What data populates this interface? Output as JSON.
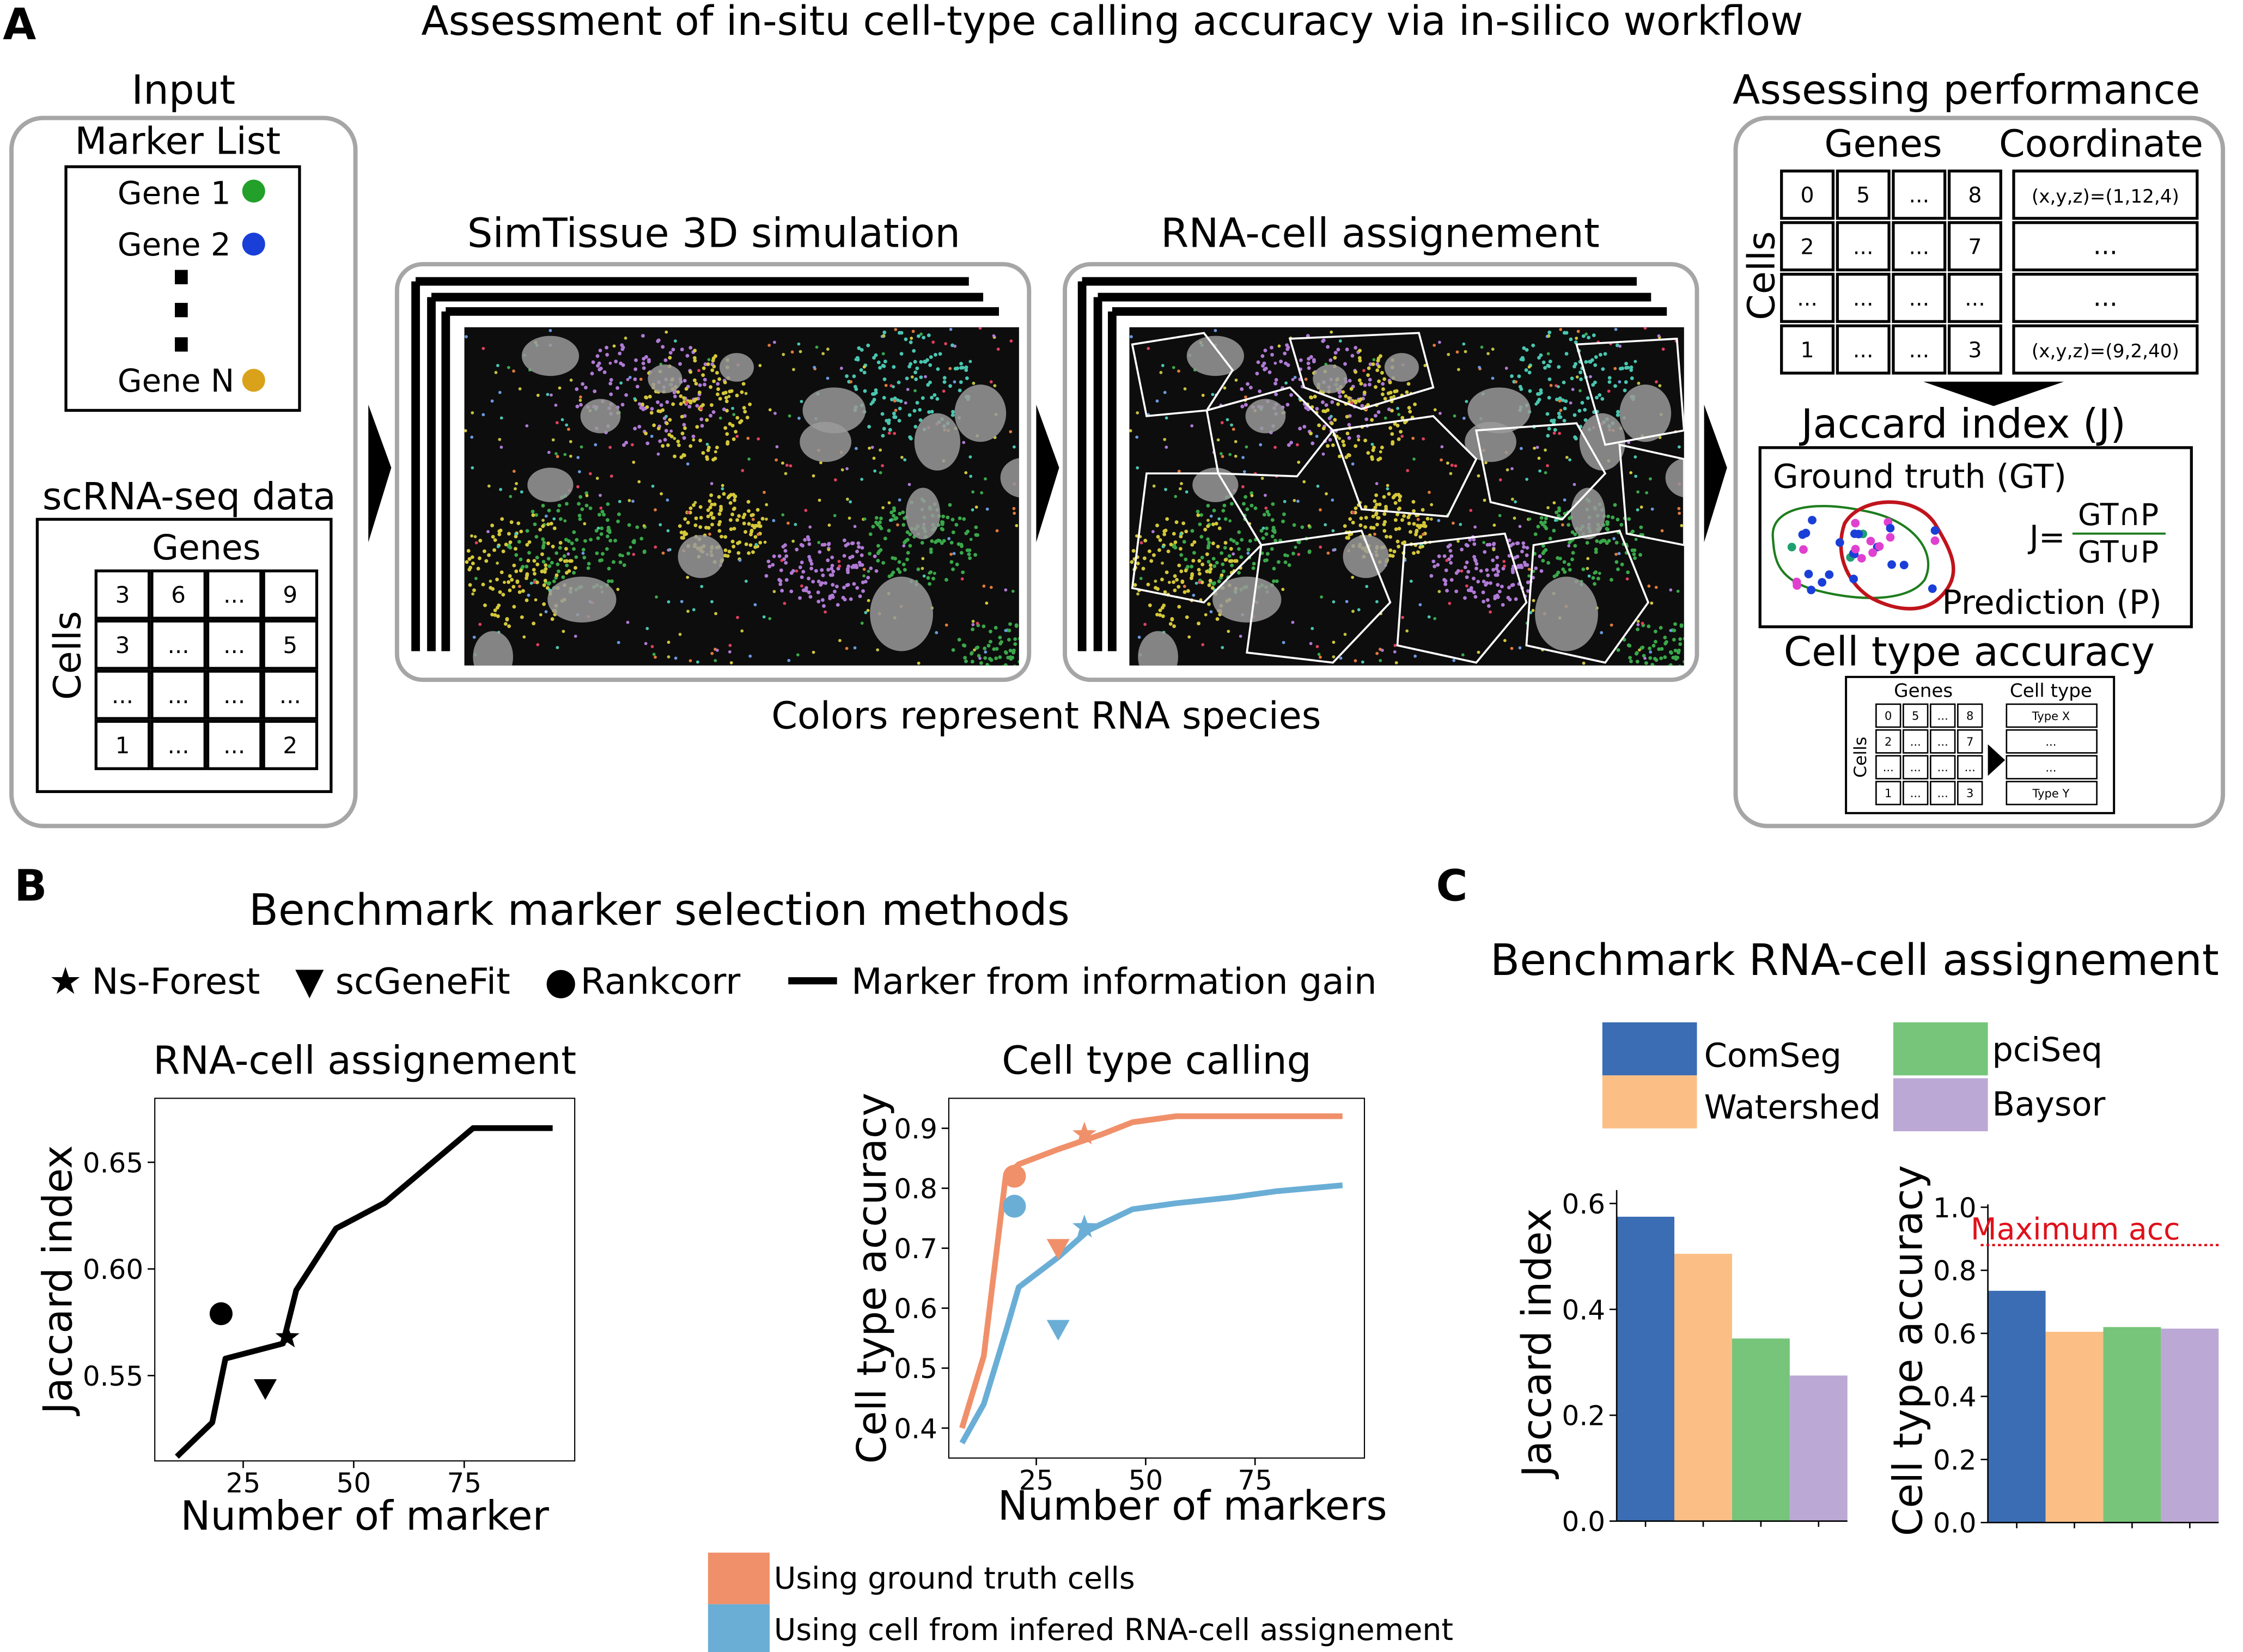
{
  "panel_a": {
    "letter": "A",
    "title": "Assessment of in-situ cell-type calling accuracy via in-silico workflow",
    "input": {
      "heading": "Input",
      "marker_list_title": "Marker List",
      "genes": [
        {
          "label": "Gene 1",
          "color": "#22a02a"
        },
        {
          "label": "Gene 2",
          "color": "#1a3fd8"
        },
        {
          "label": "Gene N",
          "color": "#d9a21a"
        }
      ],
      "scrna_title": "scRNA-seq data",
      "genes_header": "Genes",
      "cells_label": "Cells",
      "matrix": [
        [
          "3",
          "6",
          "...",
          "9"
        ],
        [
          "3",
          "...",
          "...",
          "5"
        ],
        [
          "...",
          "...",
          "...",
          "..."
        ],
        [
          "1",
          "...",
          "...",
          "2"
        ]
      ]
    },
    "sim_title": "SimTissue 3D simulation",
    "assign_title": "RNA-cell assignement",
    "colors_caption": "Colors represent RNA species",
    "assess": {
      "heading": "Assessing performance",
      "genes_header": "Genes",
      "coord_header": "Coordinate",
      "cells_label": "Cells",
      "matrix": [
        [
          "0",
          "5",
          "...",
          "8"
        ],
        [
          "2",
          "...",
          "...",
          "7"
        ],
        [
          "...",
          "...",
          "...",
          "..."
        ],
        [
          "1",
          "...",
          "...",
          "3"
        ]
      ],
      "coords": [
        "(x,y,z)=(1,12,4)",
        "...",
        "...",
        "(x,y,z)=(9,2,40)"
      ],
      "jaccard_title": "Jaccard index (J)",
      "gt_label": "Ground truth (GT)",
      "pred_label": "Prediction (P)",
      "j_prefix": "J=",
      "j_num": "GT∩P",
      "j_den": "GT∪P",
      "gt_color": "#1e7d1e",
      "pred_color": "#c0141c",
      "acc_title": "Cell type accuracy",
      "mini_genes": "Genes",
      "mini_celltype": "Cell type",
      "mini_cells": "Cells",
      "mini_matrix": [
        [
          "0",
          "5",
          "...",
          "8"
        ],
        [
          "2",
          "...",
          "...",
          "7"
        ],
        [
          "...",
          "...",
          "...",
          "..."
        ],
        [
          "1",
          "...",
          "...",
          "3"
        ]
      ],
      "mini_types": [
        "Type X",
        "...",
        "...",
        "Type Y"
      ]
    }
  },
  "panel_b": {
    "letter": "B",
    "title": "Benchmark marker selection methods",
    "legend": [
      {
        "symbol": "★",
        "label": "Ns-Forest"
      },
      {
        "symbol": "▼",
        "label": "scGeneFit"
      },
      {
        "symbol": "●",
        "label": "Rankcorr"
      },
      {
        "symbol": "line",
        "label": "Marker from information gain"
      }
    ],
    "bottom_legend": [
      {
        "label": "Using ground truth cells",
        "color": "#f0906a"
      },
      {
        "label": "Using cell from infered RNA-cell assignement",
        "color": "#6aaed6"
      }
    ]
  },
  "panel_c": {
    "letter": "C",
    "title": "Benchmark RNA-cell assignement",
    "legend": [
      {
        "label": "ComSeg",
        "color": "#3a6db3"
      },
      {
        "label": "Watershed",
        "color": "#fbbf85"
      },
      {
        "label": "pciSeq",
        "color": "#76c57a"
      },
      {
        "label": "Baysor",
        "color": "#bca8d4"
      }
    ],
    "max_label": "Maximum acc"
  },
  "chart_data": [
    {
      "type": "line",
      "title": "RNA-cell assignement",
      "xlabel": "Number of marker",
      "ylabel": "Jaccard index",
      "xlim": [
        5,
        100
      ],
      "ylim": [
        0.51,
        0.68
      ],
      "xticks": [
        25,
        50,
        75
      ],
      "yticks": [
        0.55,
        0.6,
        0.65
      ],
      "grid": false,
      "series": [
        {
          "name": "Marker from information gain",
          "kind": "line",
          "color": "#000000",
          "x": [
            10,
            18,
            21,
            34,
            37,
            46,
            57,
            77,
            95
          ],
          "y": [
            0.512,
            0.528,
            0.558,
            0.565,
            0.59,
            0.619,
            0.631,
            0.666,
            0.666
          ]
        },
        {
          "name": "Rankcorr",
          "kind": "point",
          "marker": "circle",
          "color": "#000000",
          "x": [
            20
          ],
          "y": [
            0.579
          ]
        },
        {
          "name": "scGeneFit",
          "kind": "point",
          "marker": "tri",
          "color": "#000000",
          "x": [
            30
          ],
          "y": [
            0.544
          ]
        },
        {
          "name": "Ns-Forest",
          "kind": "point",
          "marker": "star",
          "color": "#000000",
          "x": [
            35
          ],
          "y": [
            0.568
          ]
        }
      ]
    },
    {
      "type": "line",
      "title": "Cell type calling",
      "xlabel": "Number of markers",
      "ylabel": "Cell type accuracy",
      "xlim": [
        5,
        100
      ],
      "ylim": [
        0.35,
        0.95
      ],
      "xticks": [
        25,
        50,
        75
      ],
      "yticks": [
        0.4,
        0.5,
        0.6,
        0.7,
        0.8,
        0.9
      ],
      "grid": false,
      "series": [
        {
          "name": "Using ground truth cells",
          "kind": "line",
          "color": "#f0906a",
          "x": [
            8,
            13,
            18,
            21,
            30,
            40,
            47,
            57,
            70,
            95
          ],
          "y": [
            0.4,
            0.52,
            0.82,
            0.84,
            0.865,
            0.89,
            0.91,
            0.92,
            0.92,
            0.92
          ]
        },
        {
          "name": "Using cell from infered RNA-cell assignement",
          "kind": "line",
          "color": "#6aaed6",
          "x": [
            8,
            13,
            18,
            21,
            30,
            37,
            47,
            57,
            70,
            80,
            95
          ],
          "y": [
            0.375,
            0.44,
            0.56,
            0.635,
            0.685,
            0.73,
            0.765,
            0.775,
            0.785,
            0.795,
            0.805
          ]
        },
        {
          "name": "Rankcorr (GT)",
          "kind": "point",
          "marker": "circle",
          "color": "#f0906a",
          "x": [
            20
          ],
          "y": [
            0.82
          ]
        },
        {
          "name": "Rankcorr (inferred)",
          "kind": "point",
          "marker": "circle",
          "color": "#6aaed6",
          "x": [
            20
          ],
          "y": [
            0.77
          ]
        },
        {
          "name": "scGeneFit (GT)",
          "kind": "point",
          "marker": "tri",
          "color": "#f0906a",
          "x": [
            30
          ],
          "y": [
            0.7
          ]
        },
        {
          "name": "scGeneFit (inferred)",
          "kind": "point",
          "marker": "tri",
          "color": "#6aaed6",
          "x": [
            30
          ],
          "y": [
            0.565
          ]
        },
        {
          "name": "Ns-Forest (GT)",
          "kind": "point",
          "marker": "star",
          "color": "#f0906a",
          "x": [
            36
          ],
          "y": [
            0.89
          ]
        },
        {
          "name": "Ns-Forest (inferred)",
          "kind": "point",
          "marker": "star",
          "color": "#6aaed6",
          "x": [
            36
          ],
          "y": [
            0.735
          ]
        }
      ]
    },
    {
      "type": "bar",
      "ylabel": "Jaccard index",
      "ylim": [
        0.0,
        0.62
      ],
      "yticks": [
        0.0,
        0.2,
        0.4,
        0.6
      ],
      "categories": [
        "ComSeg",
        "Watershed",
        "pciSeq",
        "Baysor"
      ],
      "values": [
        0.575,
        0.505,
        0.345,
        0.275
      ],
      "colors": [
        "#3a6db3",
        "#fbbf85",
        "#76c57a",
        "#bca8d4"
      ]
    },
    {
      "type": "bar",
      "ylabel": "Cell type accuracy",
      "ylim": [
        0.0,
        1.0
      ],
      "yticks": [
        0.0,
        0.2,
        0.4,
        0.6,
        0.8,
        1.0
      ],
      "categories": [
        "ComSeg",
        "Watershed",
        "pciSeq",
        "Baysor"
      ],
      "values": [
        0.735,
        0.605,
        0.62,
        0.615
      ],
      "colors": [
        "#3a6db3",
        "#fbbf85",
        "#76c57a",
        "#bca8d4"
      ],
      "reference_line": {
        "label": "Maximum acc",
        "value": 0.88,
        "color": "#e0101a"
      }
    }
  ]
}
